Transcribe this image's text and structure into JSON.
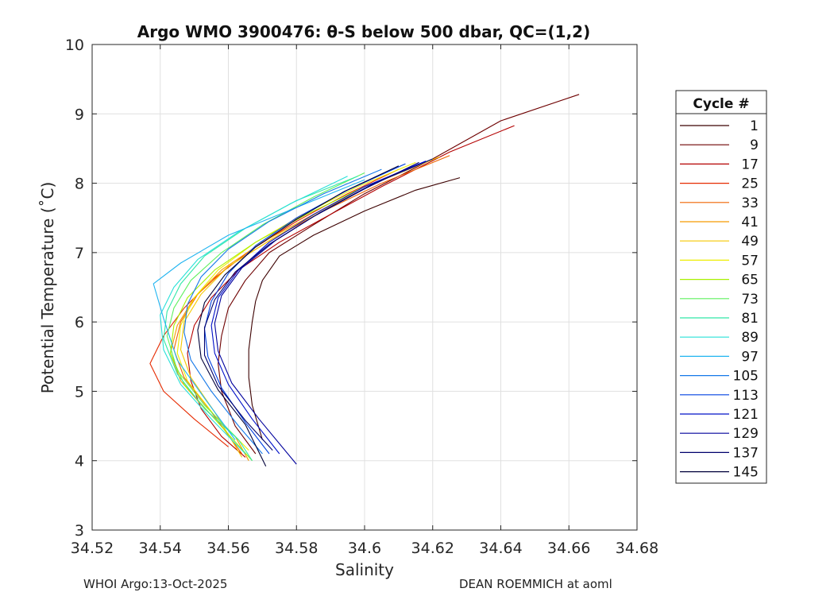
{
  "chart_data": {
    "type": "line",
    "title": "Argo WMO 3900476: θ-S below 500 dbar,  QC=(1,2)",
    "xlabel": "Salinity",
    "ylabel": "Potential Temperature (˚C)",
    "xlim": [
      34.52,
      34.68
    ],
    "ylim": [
      3,
      10
    ],
    "xticks": [
      "34.52",
      "34.54",
      "34.56",
      "34.58",
      "34.6",
      "34.62",
      "34.64",
      "34.66",
      "34.68"
    ],
    "yticks": [
      "3",
      "4",
      "5",
      "6",
      "7",
      "8",
      "9",
      "10"
    ],
    "grid": true,
    "legend": {
      "title": "Cycle #",
      "position": "right",
      "entries": [
        "1",
        "9",
        "17",
        "25",
        "33",
        "41",
        "49",
        "57",
        "65",
        "73",
        "81",
        "89",
        "97",
        "105",
        "113",
        "121",
        "129",
        "137",
        "145"
      ],
      "colors": [
        "#3c0000",
        "#6e0000",
        "#b40000",
        "#e62a00",
        "#f06400",
        "#f59a00",
        "#f5c800",
        "#eeee00",
        "#a8f000",
        "#5ef05e",
        "#30e8a8",
        "#28e0d8",
        "#20b4f0",
        "#1478e8",
        "#0040e0",
        "#0010c8",
        "#00009c",
        "#00006c",
        "#00003a"
      ]
    },
    "series": [
      {
        "name": "1",
        "x": [
          34.628,
          34.615,
          34.6,
          34.585,
          34.575,
          34.57,
          34.568,
          34.567,
          34.566,
          34.566,
          34.567,
          34.57
        ],
        "y": [
          8.08,
          7.9,
          7.6,
          7.25,
          6.95,
          6.6,
          6.3,
          6.0,
          5.6,
          5.2,
          4.8,
          4.3
        ]
      },
      {
        "name": "9",
        "x": [
          34.663,
          34.64,
          34.62,
          34.6,
          34.585,
          34.572,
          34.565,
          34.56,
          34.558,
          34.557,
          34.558,
          34.562,
          34.568
        ],
        "y": [
          9.28,
          8.9,
          8.35,
          7.85,
          7.4,
          7.0,
          6.6,
          6.2,
          5.8,
          5.4,
          5.0,
          4.5,
          4.1
        ]
      },
      {
        "name": "17",
        "x": [
          34.644,
          34.625,
          34.605,
          34.59,
          34.575,
          34.563,
          34.555,
          34.55,
          34.548,
          34.549,
          34.552,
          34.558,
          34.565
        ],
        "y": [
          8.83,
          8.45,
          7.95,
          7.55,
          7.15,
          6.75,
          6.35,
          5.95,
          5.55,
          5.15,
          4.75,
          4.35,
          4.05
        ]
      },
      {
        "name": "25",
        "x": [
          34.61,
          34.595,
          34.58,
          34.567,
          34.555,
          34.547,
          34.541,
          34.537,
          34.541,
          34.55,
          34.56
        ],
        "y": [
          8.2,
          7.85,
          7.45,
          7.05,
          6.6,
          6.2,
          5.8,
          5.4,
          5.0,
          4.6,
          4.2
        ]
      },
      {
        "name": "33",
        "x": [
          34.625,
          34.605,
          34.588,
          34.573,
          34.56,
          34.551,
          34.546,
          34.544,
          34.547,
          34.555,
          34.564
        ],
        "y": [
          8.4,
          8.0,
          7.6,
          7.2,
          6.8,
          6.4,
          6.0,
          5.6,
          5.2,
          4.7,
          4.1
        ]
      },
      {
        "name": "41",
        "x": [
          34.62,
          34.6,
          34.585,
          34.57,
          34.558,
          34.55,
          34.545,
          34.543,
          34.546,
          34.553,
          34.562,
          34.566
        ],
        "y": [
          8.35,
          7.95,
          7.55,
          7.15,
          6.75,
          6.35,
          5.95,
          5.55,
          5.15,
          4.75,
          4.35,
          4.0
        ]
      },
      {
        "name": "49",
        "x": [
          34.622,
          34.603,
          34.587,
          34.573,
          34.56,
          34.552,
          34.547,
          34.546,
          34.549,
          34.556,
          34.564
        ],
        "y": [
          8.38,
          8.0,
          7.6,
          7.2,
          6.8,
          6.4,
          6.0,
          5.6,
          5.2,
          4.7,
          4.05
        ]
      },
      {
        "name": "57",
        "x": [
          34.615,
          34.598,
          34.582,
          34.568,
          34.557,
          34.55,
          34.546,
          34.545,
          34.548,
          34.556,
          34.566
        ],
        "y": [
          8.3,
          7.95,
          7.55,
          7.15,
          6.75,
          6.35,
          5.95,
          5.55,
          5.15,
          4.65,
          4.15
        ]
      },
      {
        "name": "65",
        "x": [
          34.62,
          34.6,
          34.583,
          34.568,
          34.556,
          34.548,
          34.544,
          34.543,
          34.547,
          34.556,
          34.567
        ],
        "y": [
          8.35,
          7.95,
          7.55,
          7.15,
          6.75,
          6.35,
          5.95,
          5.55,
          5.1,
          4.6,
          4.0
        ]
      },
      {
        "name": "73",
        "x": [
          34.6,
          34.585,
          34.57,
          34.558,
          34.549,
          34.544,
          34.542,
          34.545,
          34.553,
          34.563
        ],
        "y": [
          8.15,
          7.8,
          7.4,
          7.0,
          6.6,
          6.2,
          5.8,
          5.3,
          4.8,
          4.3
        ]
      },
      {
        "name": "81",
        "x": [
          34.598,
          34.58,
          34.565,
          34.553,
          34.546,
          34.542,
          34.541,
          34.545,
          34.553,
          34.563,
          34.567
        ],
        "y": [
          8.1,
          7.75,
          7.35,
          6.95,
          6.55,
          6.15,
          5.75,
          5.25,
          4.75,
          4.3,
          4.0
        ]
      },
      {
        "name": "89",
        "x": [
          34.595,
          34.578,
          34.563,
          34.551,
          34.544,
          34.54,
          34.541,
          34.546,
          34.555,
          34.565
        ],
        "y": [
          8.1,
          7.7,
          7.3,
          6.9,
          6.5,
          6.1,
          5.6,
          5.1,
          4.6,
          4.1
        ]
      },
      {
        "name": "97",
        "x": [
          34.6,
          34.58,
          34.56,
          34.546,
          34.538,
          34.541,
          34.545,
          34.553,
          34.562
        ],
        "y": [
          8.05,
          7.65,
          7.25,
          6.85,
          6.55,
          6.05,
          5.45,
          4.9,
          4.3
        ]
      },
      {
        "name": "105",
        "x": [
          34.605,
          34.588,
          34.572,
          34.56,
          34.552,
          34.548,
          34.547,
          34.549,
          34.555,
          34.563,
          34.57
        ],
        "y": [
          8.2,
          7.85,
          7.45,
          7.05,
          6.65,
          6.25,
          5.85,
          5.45,
          5.0,
          4.5,
          4.1
        ]
      },
      {
        "name": "113",
        "x": [
          34.612,
          34.595,
          34.58,
          34.568,
          34.56,
          34.555,
          34.553,
          34.554,
          34.558,
          34.565,
          34.572
        ],
        "y": [
          8.28,
          7.9,
          7.5,
          7.1,
          6.7,
          6.3,
          5.9,
          5.5,
          5.05,
          4.55,
          4.1
        ]
      },
      {
        "name": "121",
        "x": [
          34.618,
          34.6,
          34.585,
          34.572,
          34.563,
          34.557,
          34.555,
          34.556,
          34.56,
          34.567,
          34.575
        ],
        "y": [
          8.32,
          7.95,
          7.55,
          7.15,
          6.75,
          6.35,
          5.95,
          5.55,
          5.1,
          4.6,
          4.1
        ]
      },
      {
        "name": "129",
        "x": [
          34.62,
          34.602,
          34.587,
          34.574,
          34.564,
          34.558,
          34.556,
          34.557,
          34.561,
          34.569,
          34.58
        ],
        "y": [
          8.35,
          7.98,
          7.58,
          7.18,
          6.78,
          6.38,
          5.98,
          5.58,
          5.12,
          4.6,
          3.95
        ]
      },
      {
        "name": "137",
        "x": [
          34.616,
          34.6,
          34.585,
          34.572,
          34.562,
          34.556,
          34.553,
          34.553,
          34.557,
          34.565,
          34.573
        ],
        "y": [
          8.3,
          7.92,
          7.52,
          7.12,
          6.72,
          6.32,
          5.92,
          5.52,
          5.08,
          4.58,
          4.15
        ]
      },
      {
        "name": "145",
        "x": [
          34.61,
          34.594,
          34.58,
          34.568,
          34.559,
          34.553,
          34.551,
          34.552,
          34.557,
          34.565,
          34.571
        ],
        "y": [
          8.25,
          7.88,
          7.48,
          7.08,
          6.68,
          6.28,
          5.88,
          5.48,
          5.02,
          4.52,
          3.92
        ]
      }
    ]
  },
  "footer": {
    "left": "WHOI Argo:13-Oct-2025",
    "right": "DEAN ROEMMICH at aoml"
  }
}
